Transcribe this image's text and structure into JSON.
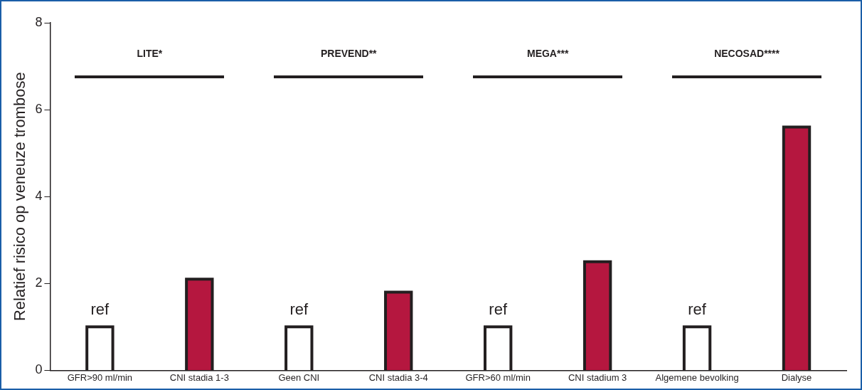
{
  "chart_data": {
    "type": "bar",
    "ylabel": "Relatief risico op veneuze trombose",
    "categories": [
      "GFR>90 ml/min",
      "CNI stadia 1-3",
      "Geen CNI",
      "CNI stadia 3-4",
      "GFR>60 ml/min",
      "CNI stadium 3",
      "Algemene bevolking",
      "Dialyse"
    ],
    "values": [
      1,
      2.1,
      1,
      1.8,
      1,
      2.5,
      1,
      5.6
    ],
    "colors": [
      "#ffffff",
      "#b5173f",
      "#ffffff",
      "#b5173f",
      "#ffffff",
      "#b5173f",
      "#ffffff",
      "#b5173f"
    ],
    "ylim": [
      0,
      8
    ],
    "yticks": [
      0,
      2,
      4,
      6,
      8
    ],
    "grid": false,
    "legend": false,
    "annotations": [
      "LITE*",
      "PREVEND**",
      "MEGA***",
      "NECOSAD****",
      {
        "text": "ref",
        "x": "GFR>90 ml/min",
        "y": 1
      },
      {
        "text": "ref",
        "x": "Geen CNI",
        "y": 1
      },
      {
        "text": "ref",
        "x": "GFR>60 ml/min",
        "y": 1
      },
      {
        "text": "ref",
        "x": "Algemene bevolking",
        "y": 1
      }
    ]
  }
}
